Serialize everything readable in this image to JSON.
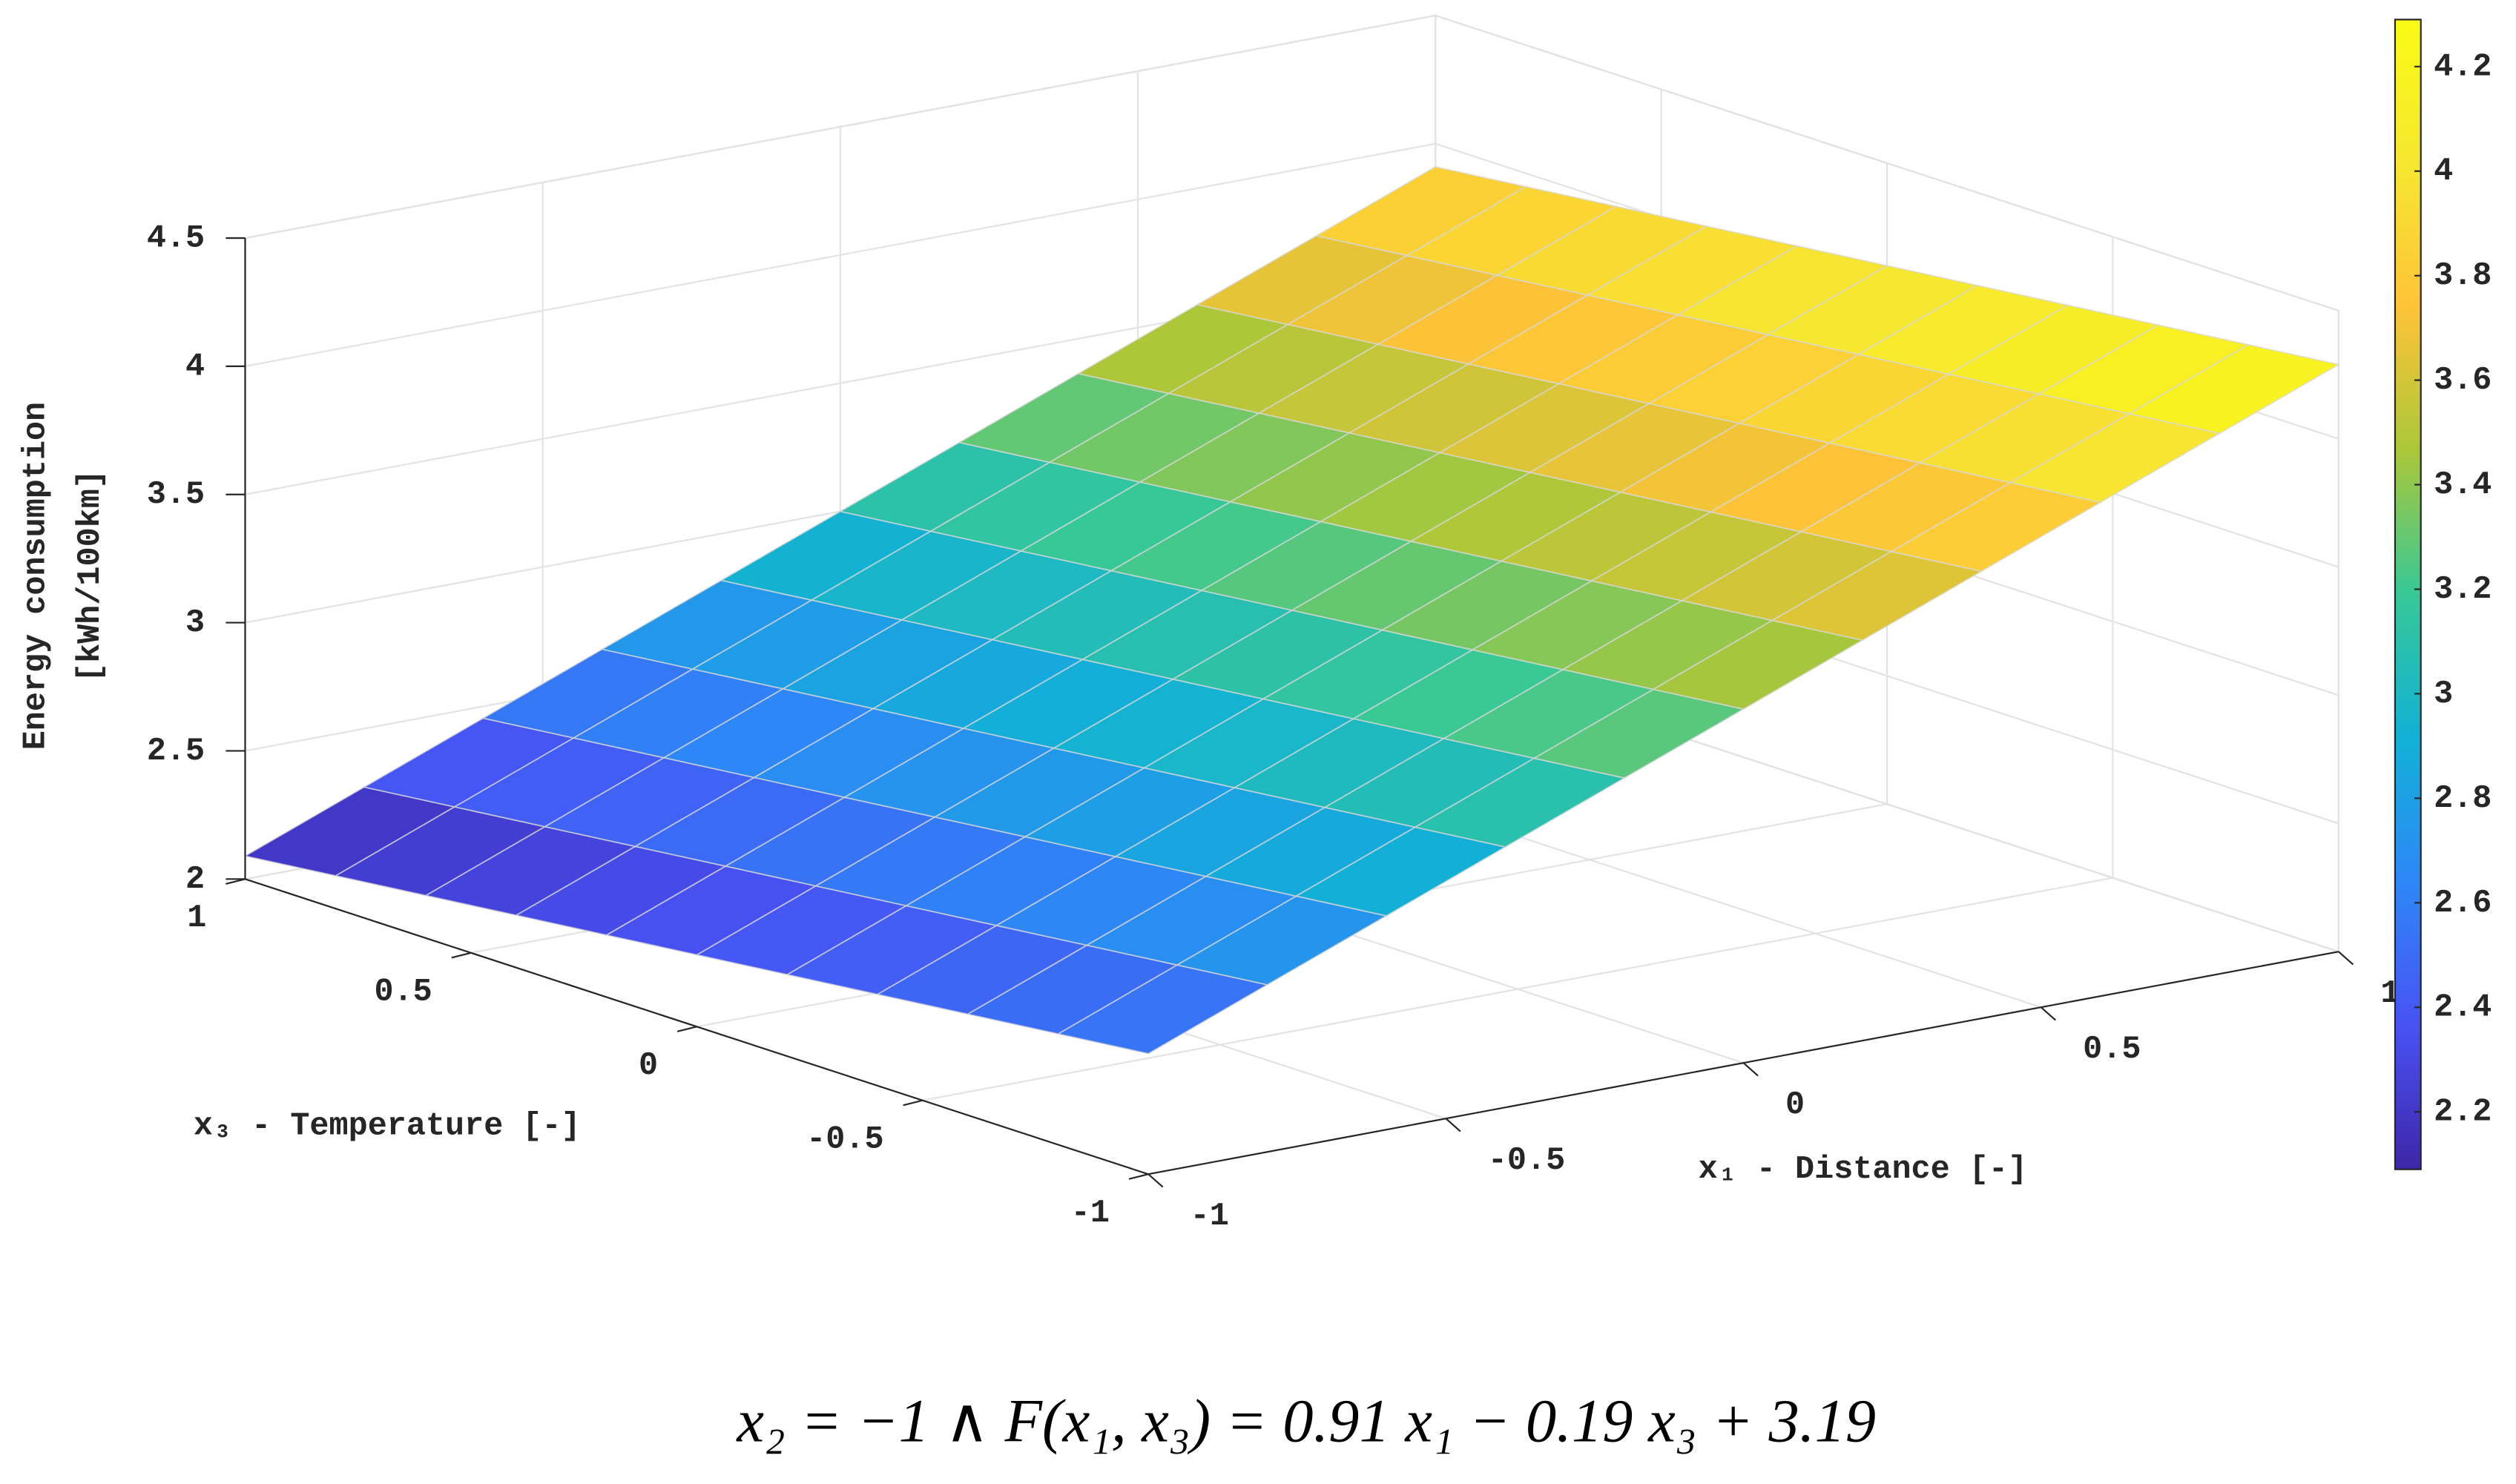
{
  "chart_data": {
    "type": "surface",
    "zlabel": [
      "Energy consumption",
      "[kWh/100km]"
    ],
    "xlabel": "x₁ - Distance [-]",
    "ylabel": "x₃ - Temperature [-]",
    "caption": "x₂ = −1  ∧ F(x₁, x₃) =  0.91 x₁ − 0.19 x₃ + 3.19",
    "x": [
      -1,
      -0.8,
      -0.6,
      -0.4,
      -0.2,
      0,
      0.2,
      0.4,
      0.6,
      0.8,
      1
    ],
    "y": [
      -1,
      -0.8,
      -0.6,
      -0.4,
      -0.2,
      0,
      0.2,
      0.4,
      0.6,
      0.8,
      1
    ],
    "z": [
      [
        2.47,
        2.652,
        2.834,
        3.016,
        3.198,
        3.38,
        3.562,
        3.744,
        3.926,
        4.108,
        4.29
      ],
      [
        2.432,
        2.614,
        2.796,
        2.978,
        3.16,
        3.342,
        3.524,
        3.706,
        3.888,
        4.07,
        4.252
      ],
      [
        2.394,
        2.576,
        2.758,
        2.94,
        3.122,
        3.304,
        3.486,
        3.668,
        3.85,
        4.032,
        4.214
      ],
      [
        2.356,
        2.538,
        2.72,
        2.902,
        3.084,
        3.266,
        3.448,
        3.63,
        3.812,
        3.994,
        4.176
      ],
      [
        2.318,
        2.5,
        2.682,
        2.864,
        3.046,
        3.228,
        3.41,
        3.592,
        3.774,
        3.956,
        4.138
      ],
      [
        2.28,
        2.462,
        2.644,
        2.826,
        3.008,
        3.19,
        3.372,
        3.554,
        3.736,
        3.918,
        4.1
      ],
      [
        2.242,
        2.424,
        2.606,
        2.788,
        2.97,
        3.152,
        3.334,
        3.516,
        3.698,
        3.88,
        4.062
      ],
      [
        2.204,
        2.386,
        2.568,
        2.75,
        2.932,
        3.114,
        3.296,
        3.478,
        3.66,
        3.842,
        4.024
      ],
      [
        2.166,
        2.348,
        2.53,
        2.712,
        2.894,
        3.076,
        3.258,
        3.44,
        3.622,
        3.804,
        3.986
      ],
      [
        2.128,
        2.31,
        2.492,
        2.674,
        2.856,
        3.038,
        3.22,
        3.402,
        3.584,
        3.766,
        3.948
      ],
      [
        2.09,
        2.272,
        2.454,
        2.636,
        2.818,
        3,
        3.182,
        3.364,
        3.546,
        3.728,
        3.91
      ]
    ],
    "xlim": [
      -1,
      1
    ],
    "ylim": [
      -1,
      1
    ],
    "zlim": [
      2,
      4.5
    ],
    "xticks": [
      -1,
      -0.5,
      0,
      0.5,
      1
    ],
    "yticks": [
      -1,
      -0.5,
      0,
      0.5,
      1
    ],
    "zticks": [
      2,
      2.5,
      3,
      3.5,
      4,
      4.5
    ],
    "clim": [
      2.09,
      4.29
    ],
    "cticks": [
      2.2,
      2.4,
      2.6,
      2.8,
      3,
      3.2,
      3.4,
      3.6,
      3.8,
      4,
      4.2
    ],
    "colormap": "parula",
    "grid": true
  }
}
